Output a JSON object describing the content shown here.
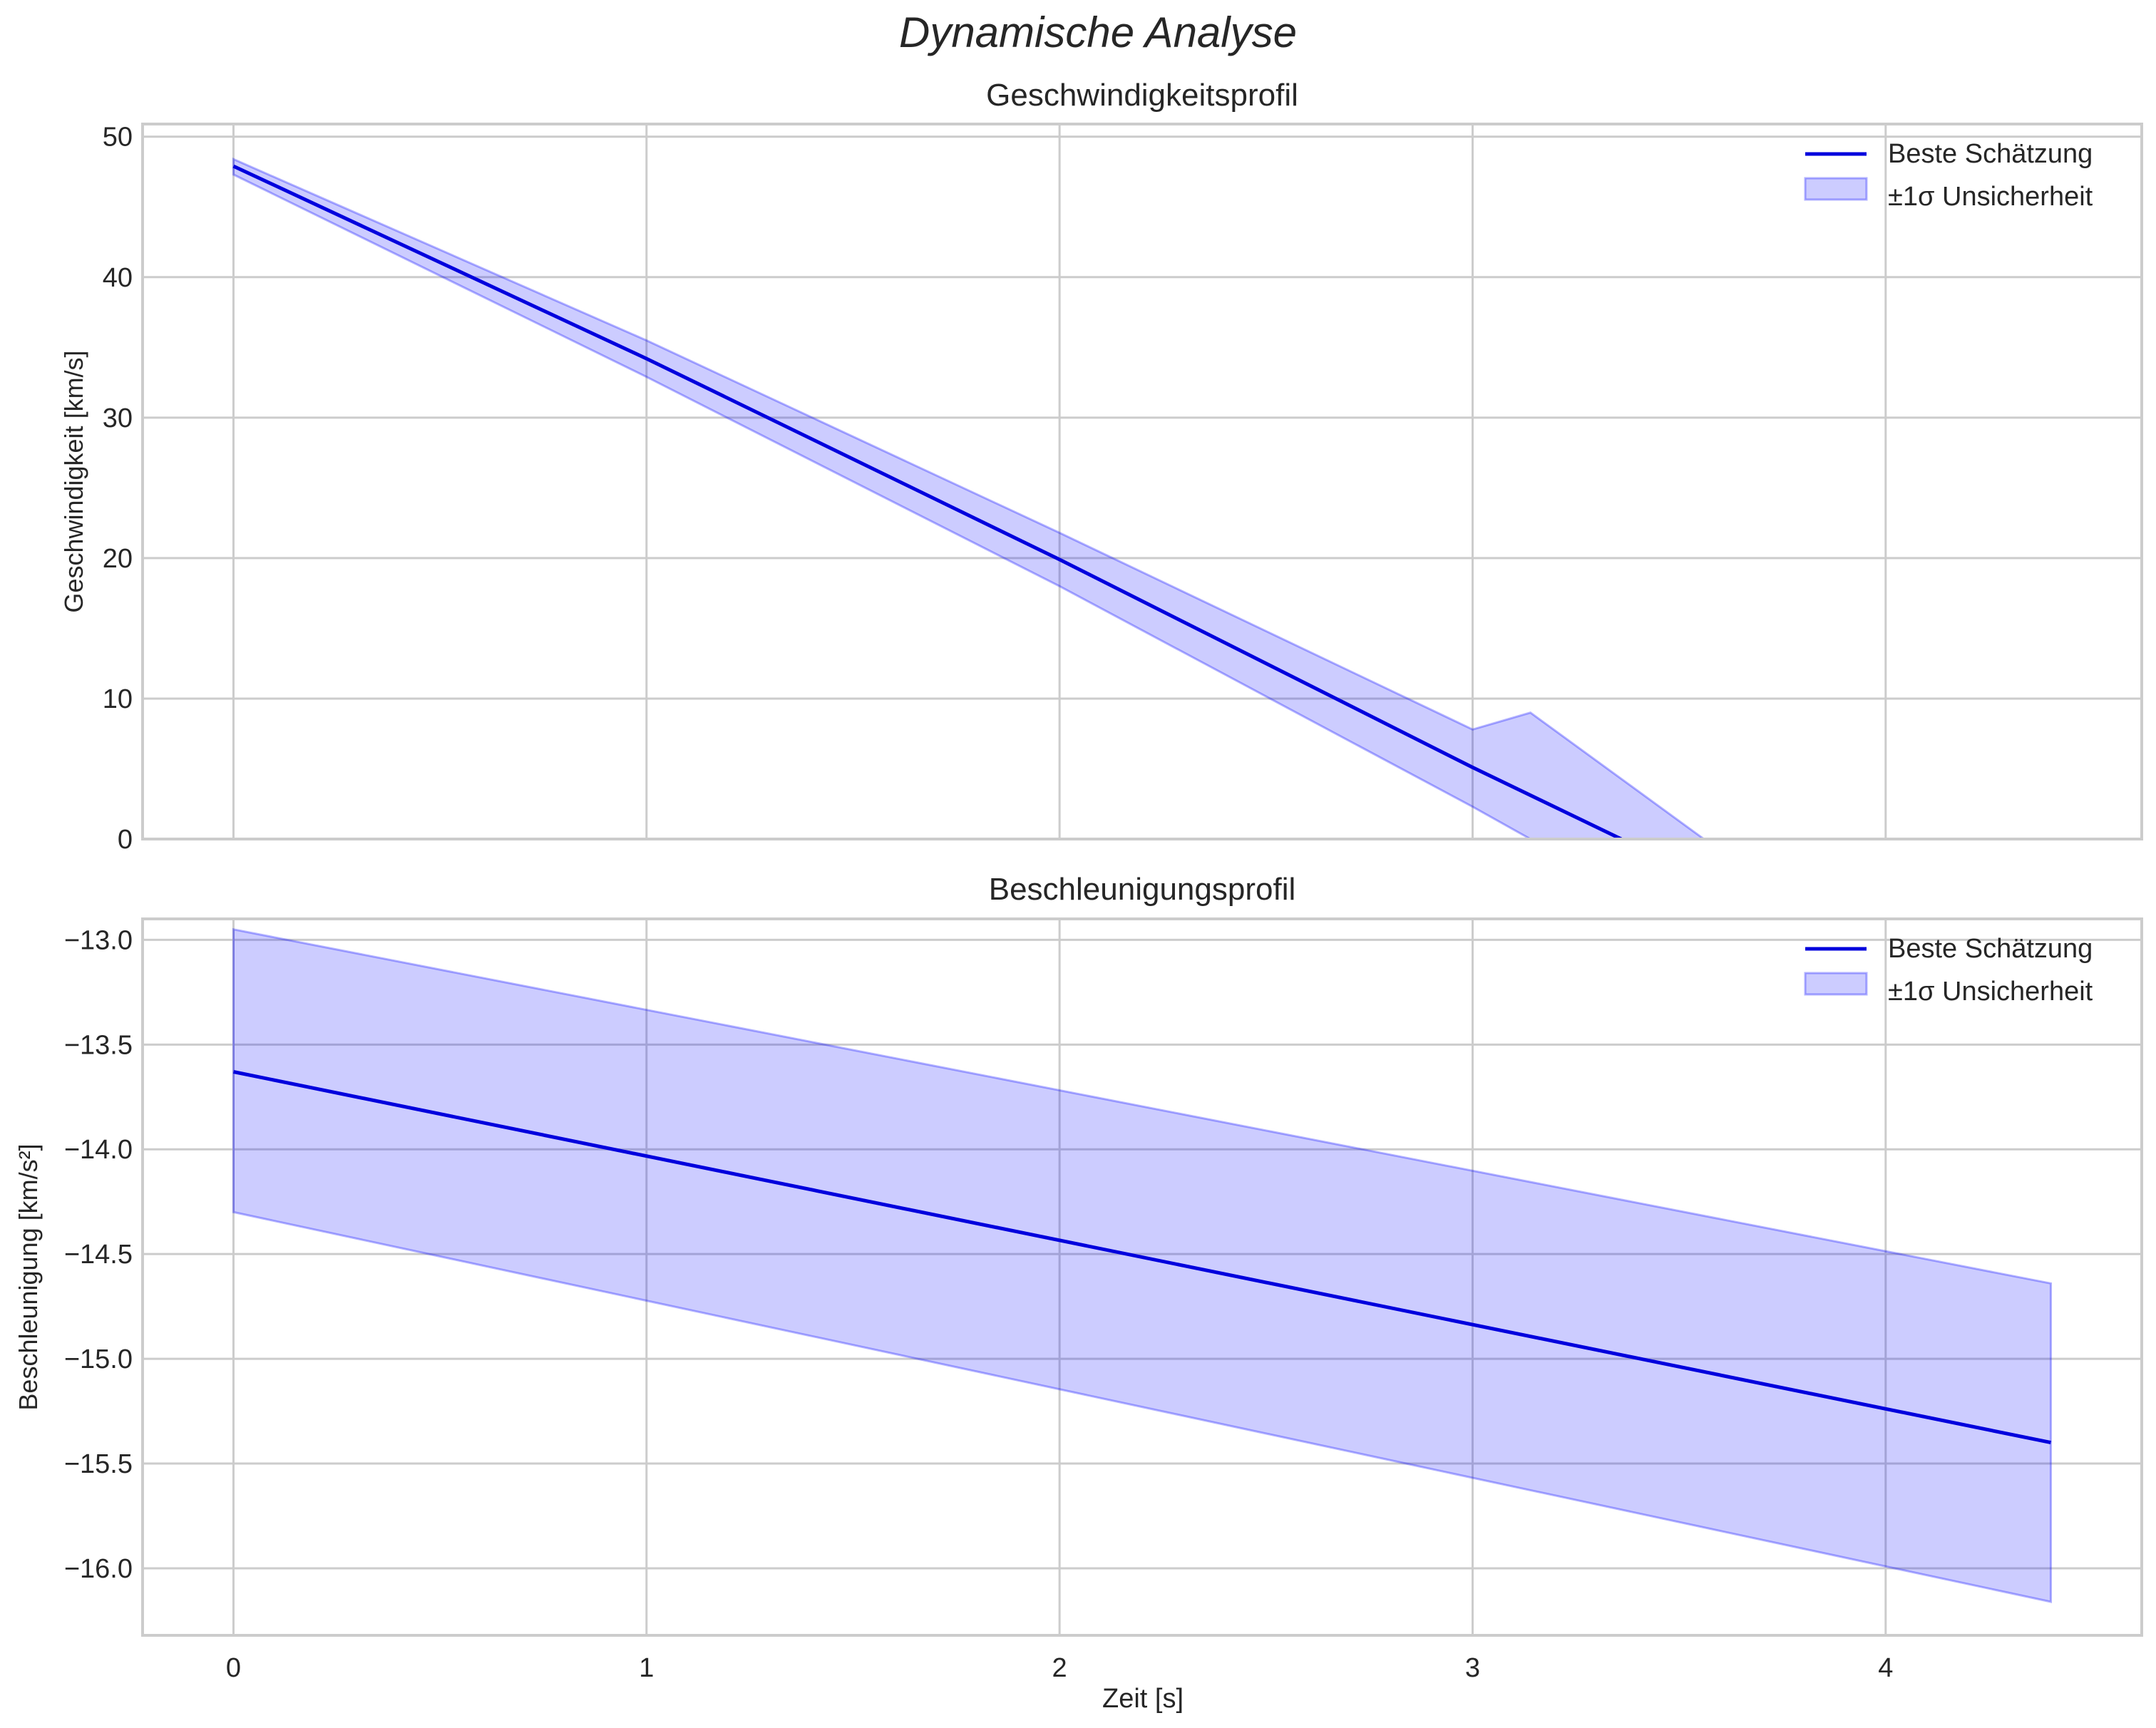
{
  "figure": {
    "title": "Dynamische Analyse"
  },
  "colors": {
    "line": "#0000dd",
    "band_fill": "#0000ff",
    "band_opacity": 0.2,
    "grid": "#cccccc",
    "spine": "#cccccc"
  },
  "chart_data": [
    {
      "type": "line",
      "title": "Geschwindigkeitsprofil",
      "xlabel": "",
      "ylabel": "Geschwindigkeit [km/s]",
      "xlim": [
        -0.22,
        4.62
      ],
      "ylim": [
        0,
        50.9
      ],
      "xticks": [
        0,
        1,
        2,
        3,
        4
      ],
      "xticklabels": [
        "",
        "",
        "",
        "",
        ""
      ],
      "yticks": [
        0,
        10,
        20,
        30,
        40,
        50
      ],
      "yticklabels": [
        "0",
        "10",
        "20",
        "30",
        "40",
        "50"
      ],
      "grid": true,
      "legend": {
        "position": "top-right",
        "entries": [
          "Beste Schätzung",
          "±1σ Unsicherheit"
        ]
      },
      "series": [
        {
          "name": "Beste Schätzung",
          "x": [
            0,
            1,
            2,
            3,
            3.36
          ],
          "values": [
            47.9,
            34.2,
            19.9,
            5.1,
            0
          ]
        }
      ],
      "band": {
        "name": "±1σ Unsicherheit",
        "x": [
          0,
          1,
          2,
          3,
          3.14,
          3.56
        ],
        "lower": [
          47.3,
          32.9,
          18.0,
          2.3,
          0,
          0
        ],
        "upper": [
          48.4,
          35.5,
          21.8,
          7.8,
          9.0,
          0
        ]
      }
    },
    {
      "type": "line",
      "title": "Beschleunigungsprofil",
      "xlabel": "Zeit [s]",
      "ylabel": "Beschleunigung [km/s²]",
      "xlim": [
        -0.22,
        4.62
      ],
      "ylim": [
        -16.32,
        -12.9
      ],
      "xticks": [
        0,
        1,
        2,
        3,
        4
      ],
      "xticklabels": [
        "0",
        "1",
        "2",
        "3",
        "4"
      ],
      "yticks": [
        -13.0,
        -13.5,
        -14.0,
        -14.5,
        -15.0,
        -15.5,
        -16.0
      ],
      "yticklabels": [
        "−13.0",
        "−13.5",
        "−14.0",
        "−14.5",
        "−15.0",
        "−15.5",
        "−16.0"
      ],
      "grid": true,
      "legend": {
        "position": "top-right",
        "entries": [
          "Beste Schätzung",
          "±1σ Unsicherheit"
        ]
      },
      "series": [
        {
          "name": "Beste Schätzung",
          "x": [
            0,
            4.4
          ],
          "values": [
            -13.63,
            -15.4
          ]
        }
      ],
      "band": {
        "name": "±1σ Unsicherheit",
        "x": [
          0,
          4.4
        ],
        "lower": [
          -14.3,
          -16.16
        ],
        "upper": [
          -12.95,
          -14.64
        ]
      }
    }
  ]
}
